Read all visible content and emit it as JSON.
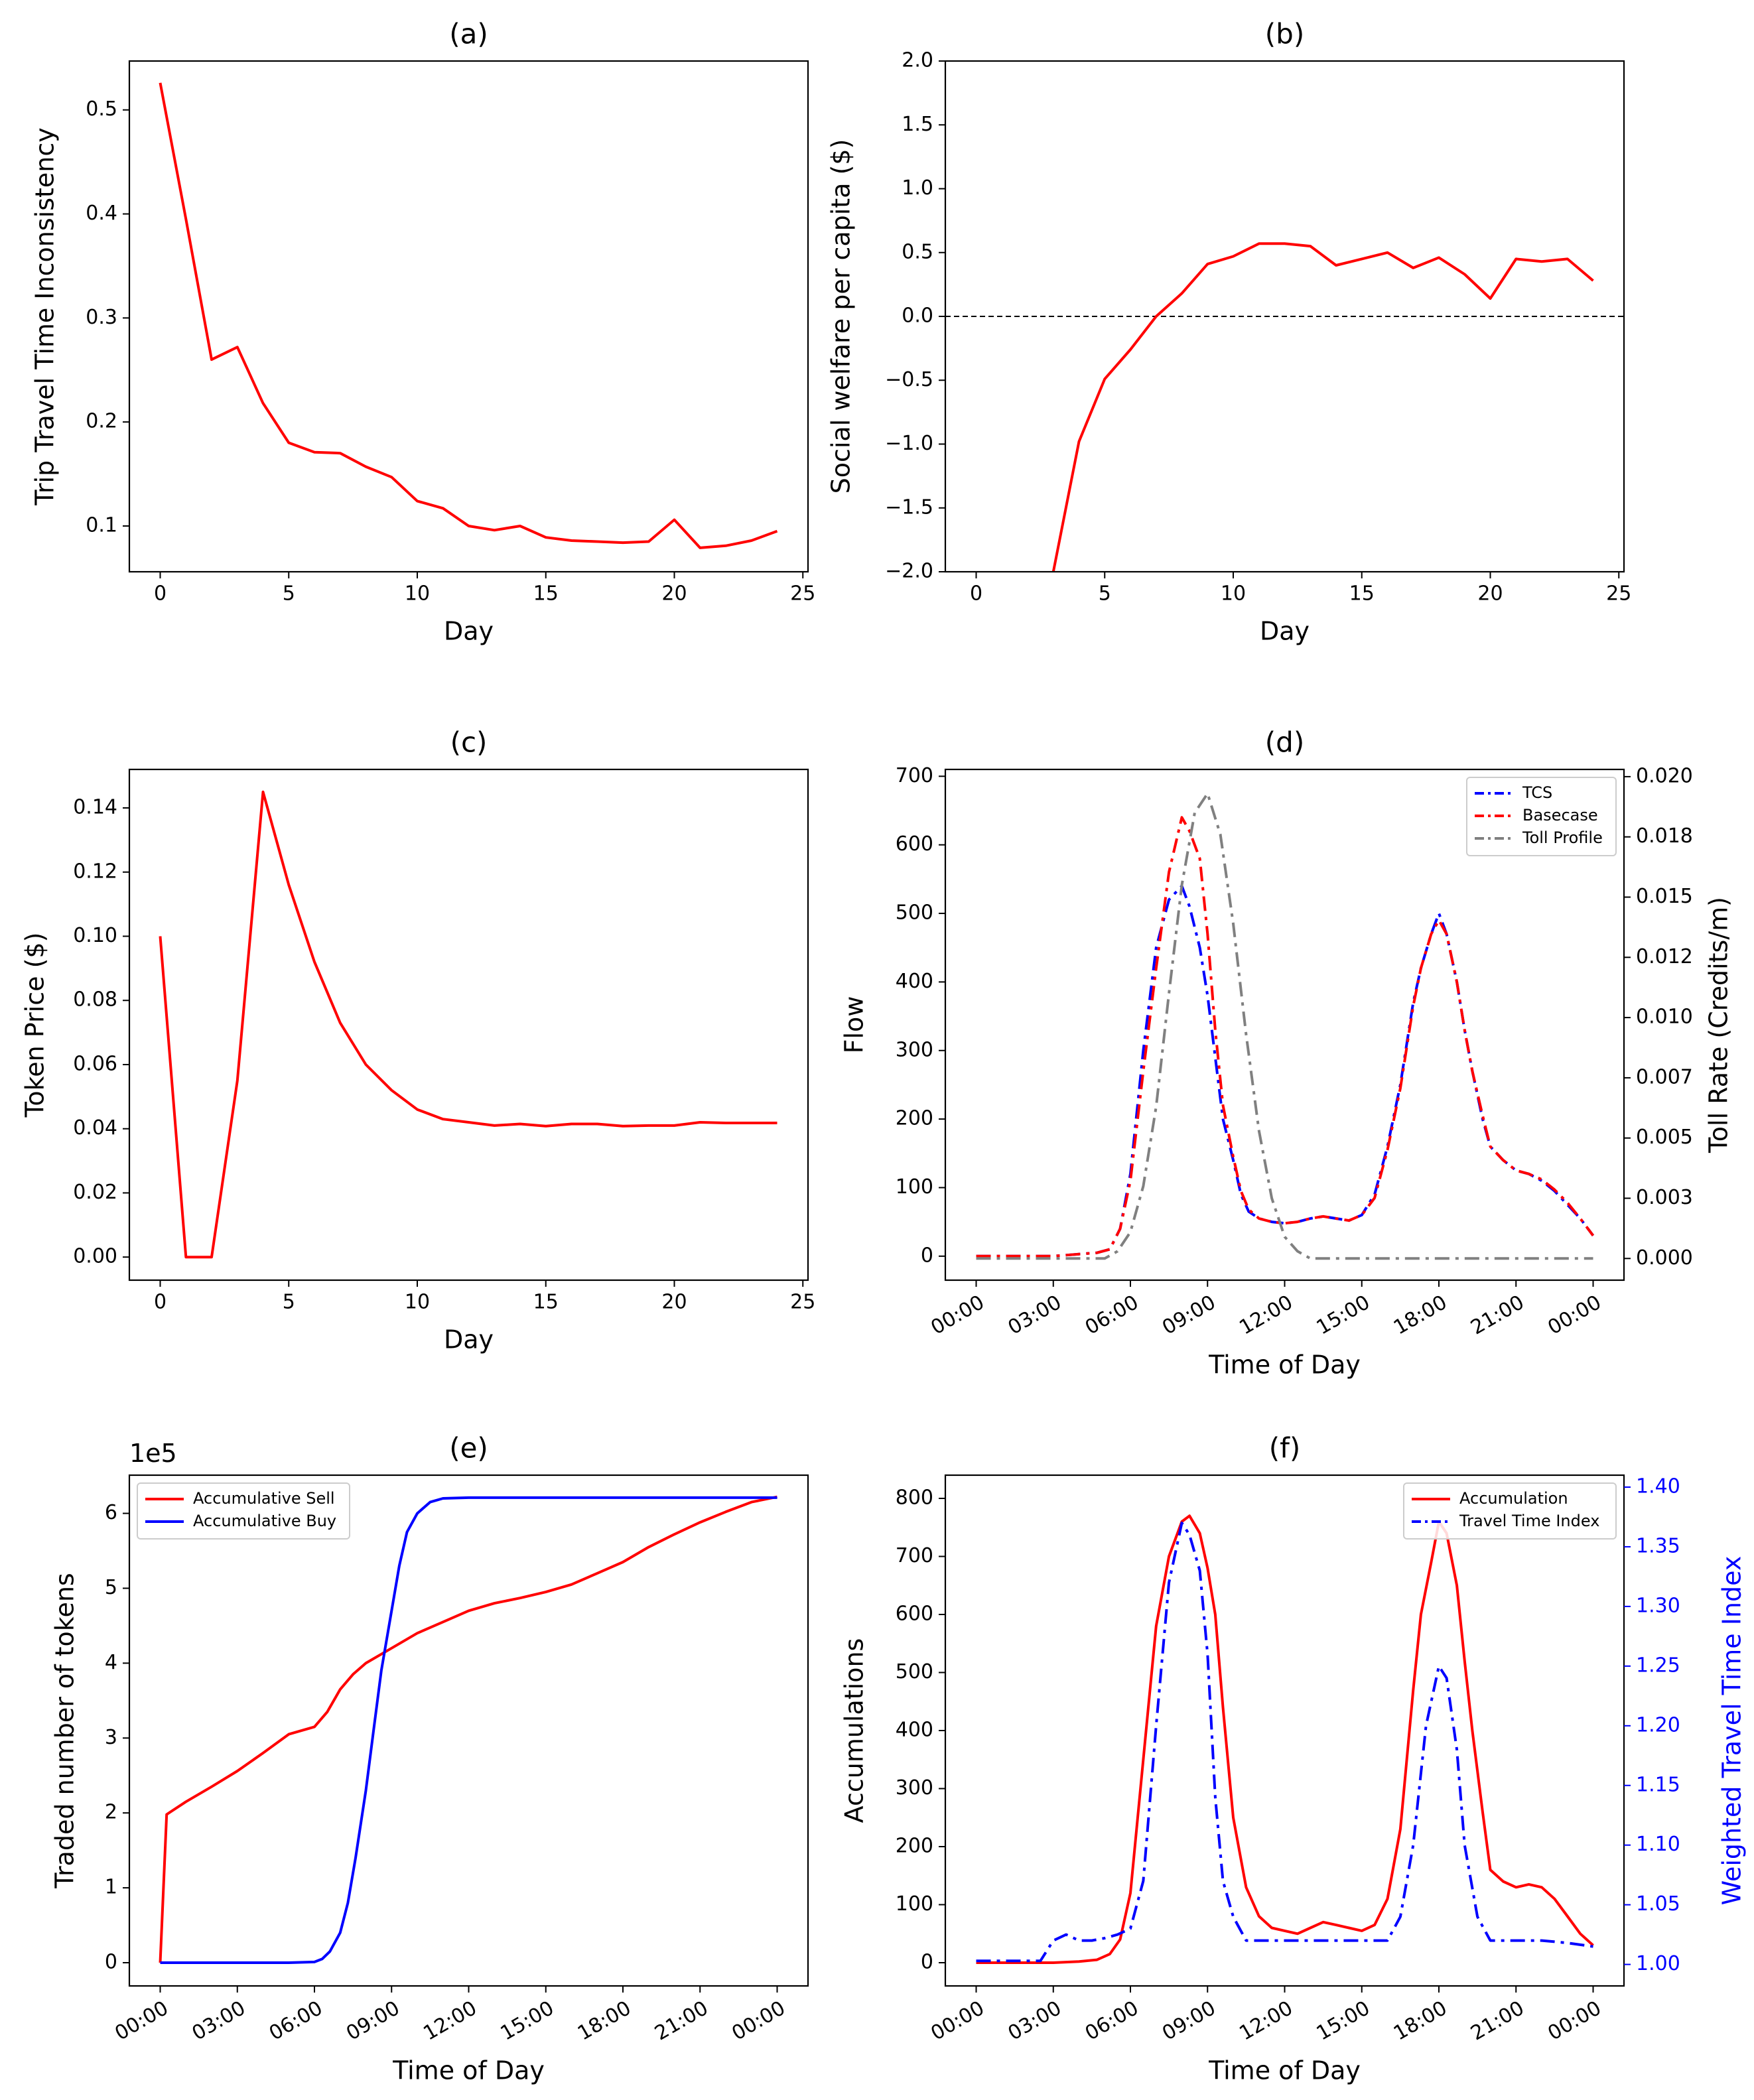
{
  "chart_data": [
    {
      "id": "a",
      "type": "line",
      "title": "(a)",
      "xlabel": "Day",
      "ylabel": "Trip Travel Time Inconsistency",
      "xlim": [
        -1.2,
        25.2
      ],
      "ylim": [
        0.056,
        0.547
      ],
      "xticks": [
        0,
        5,
        10,
        15,
        20,
        25
      ],
      "xtick_labels": [
        "0",
        "5",
        "10",
        "15",
        "20",
        "25"
      ],
      "yticks": [
        0.1,
        0.2,
        0.3,
        0.4,
        0.5
      ],
      "ytick_labels": [
        "0.1",
        "0.2",
        "0.3",
        "0.4",
        "0.5"
      ],
      "series": [
        {
          "name": "Trip Travel Time Inconsistency",
          "color": "#ff0000",
          "x": [
            0,
            1,
            2,
            3,
            4,
            5,
            6,
            7,
            8,
            9,
            10,
            11,
            12,
            13,
            14,
            15,
            16,
            17,
            18,
            19,
            20,
            21,
            22,
            23,
            24
          ],
          "y": [
            0.526,
            0.395,
            0.26,
            0.272,
            0.218,
            0.18,
            0.171,
            0.17,
            0.157,
            0.147,
            0.124,
            0.117,
            0.1,
            0.096,
            0.1,
            0.089,
            0.086,
            0.085,
            0.084,
            0.085,
            0.106,
            0.079,
            0.081,
            0.086,
            0.095
          ]
        }
      ]
    },
    {
      "id": "b",
      "type": "line",
      "title": "(b)",
      "xlabel": "Day",
      "ylabel": "Social welfare per capita ($)",
      "xlim": [
        -1.2,
        25.2
      ],
      "ylim": [
        -2.0,
        2.0
      ],
      "xticks": [
        0,
        5,
        10,
        15,
        20,
        25
      ],
      "xtick_labels": [
        "0",
        "5",
        "10",
        "15",
        "20",
        "25"
      ],
      "yticks": [
        -2.0,
        -1.5,
        -1.0,
        -0.5,
        0.0,
        0.5,
        1.0,
        1.5,
        2.0
      ],
      "ytick_labels": [
        "−2.0",
        "−1.5",
        "−1.0",
        "−0.5",
        "0.0",
        "0.5",
        "1.0",
        "1.5",
        "2.0"
      ],
      "reference_line": {
        "y": 0.0,
        "style": "dashed",
        "color": "#000000"
      },
      "series": [
        {
          "name": "Social welfare per capita",
          "color": "#ff0000",
          "x": [
            3,
            4,
            5,
            6,
            7,
            8,
            9,
            10,
            11,
            12,
            13,
            14,
            15,
            16,
            17,
            18,
            19,
            20,
            21,
            22,
            23,
            24
          ],
          "y": [
            -2.0,
            -0.98,
            -0.49,
            -0.26,
            0.0,
            0.18,
            0.41,
            0.47,
            0.57,
            0.57,
            0.55,
            0.4,
            0.45,
            0.5,
            0.38,
            0.46,
            0.33,
            0.14,
            0.45,
            0.43,
            0.45,
            0.28
          ]
        }
      ]
    },
    {
      "id": "c",
      "type": "line",
      "title": "(c)",
      "xlabel": "Day",
      "ylabel": "Token Price ($)",
      "xlim": [
        -1.2,
        25.2
      ],
      "ylim": [
        -0.0072,
        0.152
      ],
      "xticks": [
        0,
        5,
        10,
        15,
        20,
        25
      ],
      "xtick_labels": [
        "0",
        "5",
        "10",
        "15",
        "20",
        "25"
      ],
      "yticks": [
        0.0,
        0.02,
        0.04,
        0.06,
        0.08,
        0.1,
        0.12,
        0.14
      ],
      "ytick_labels": [
        "0.00",
        "0.02",
        "0.04",
        "0.06",
        "0.08",
        "0.10",
        "0.12",
        "0.14"
      ],
      "series": [
        {
          "name": "Token Price",
          "color": "#ff0000",
          "x": [
            0,
            1,
            2,
            3,
            4,
            5,
            6,
            7,
            8,
            9,
            10,
            11,
            12,
            13,
            14,
            15,
            16,
            17,
            18,
            19,
            20,
            21,
            22,
            23,
            24
          ],
          "y": [
            0.1,
            0.0,
            0.0,
            0.055,
            0.145,
            0.116,
            0.092,
            0.073,
            0.06,
            0.052,
            0.046,
            0.043,
            0.042,
            0.041,
            0.0415,
            0.0408,
            0.0415,
            0.0415,
            0.0408,
            0.041,
            0.041,
            0.042,
            0.0418,
            0.0418,
            0.0418
          ]
        }
      ]
    },
    {
      "id": "d",
      "type": "line",
      "title": "(d)",
      "xlabel": "Time of Day",
      "ylabel": "Flow",
      "y2label": "Toll Rate (Credits/m)",
      "xlim": [
        -1.2,
        25.2
      ],
      "ylim": [
        -35,
        710
      ],
      "y2lim": [
        -0.0009,
        0.0203
      ],
      "xticks": [
        0,
        3,
        6,
        9,
        12,
        15,
        18,
        21,
        24
      ],
      "xtick_labels": [
        "00:00",
        "03:00",
        "06:00",
        "09:00",
        "12:00",
        "15:00",
        "18:00",
        "21:00",
        "00:00"
      ],
      "yticks": [
        0,
        100,
        200,
        300,
        400,
        500,
        600,
        700
      ],
      "ytick_labels": [
        "0",
        "100",
        "200",
        "300",
        "400",
        "500",
        "600",
        "700"
      ],
      "y2ticks": [
        0.0,
        0.0025,
        0.005,
        0.0075,
        0.01,
        0.0125,
        0.015,
        0.0175,
        0.02
      ],
      "y2tick_labels": [
        "0.000",
        "0.003",
        "0.005",
        "0.007",
        "0.010",
        "0.012",
        "0.015",
        "0.018",
        "0.020"
      ],
      "legend": [
        "TCS",
        "Basecase",
        "Toll Profile"
      ],
      "series": [
        {
          "name": "TCS",
          "color": "#0000ff",
          "style": "dashdot",
          "axis": "left",
          "x": [
            0,
            3,
            4,
            4.7,
            5.2,
            5.6,
            6,
            6.5,
            7,
            7.5,
            8,
            8.3,
            8.7,
            9,
            9.3,
            9.6,
            10,
            10.3,
            10.6,
            11,
            11.5,
            12,
            12.5,
            13,
            13.5,
            14,
            14.5,
            15,
            15.5,
            16,
            16.5,
            17,
            17.3,
            17.7,
            18,
            18.3,
            18.7,
            19,
            19.3,
            19.7,
            20,
            20.5,
            21,
            21.5,
            22,
            22.5,
            23,
            23.5,
            24
          ],
          "y": [
            0,
            0,
            3,
            5,
            10,
            40,
            120,
            300,
            450,
            520,
            540,
            510,
            450,
            380,
            290,
            200,
            140,
            90,
            65,
            55,
            50,
            48,
            50,
            55,
            58,
            55,
            52,
            60,
            90,
            160,
            250,
            370,
            420,
            470,
            500,
            470,
            400,
            330,
            270,
            200,
            160,
            140,
            125,
            120,
            110,
            95,
            75,
            55,
            30
          ]
        },
        {
          "name": "Basecase",
          "color": "#ff0000",
          "style": "dashdot",
          "axis": "left",
          "x": [
            0,
            3,
            4,
            4.7,
            5.2,
            5.6,
            6,
            6.5,
            7,
            7.5,
            8,
            8.3,
            8.7,
            9,
            9.3,
            9.6,
            10,
            10.3,
            10.6,
            11,
            11.5,
            12,
            12.5,
            13,
            13.5,
            14,
            14.5,
            15,
            15.5,
            16,
            16.5,
            17,
            17.3,
            17.7,
            18,
            18.3,
            18.7,
            19,
            19.3,
            19.7,
            20,
            20.5,
            21,
            21.5,
            22,
            22.5,
            23,
            23.5,
            24
          ],
          "y": [
            0,
            0,
            3,
            5,
            10,
            40,
            110,
            270,
            420,
            560,
            640,
            620,
            580,
            470,
            330,
            220,
            145,
            95,
            68,
            55,
            50,
            48,
            50,
            55,
            58,
            55,
            52,
            60,
            85,
            155,
            245,
            365,
            420,
            470,
            490,
            470,
            400,
            330,
            270,
            205,
            160,
            140,
            125,
            120,
            112,
            97,
            78,
            55,
            30
          ]
        },
        {
          "name": "Toll Profile",
          "color": "#808080",
          "style": "dashdot",
          "axis": "right",
          "x": [
            0,
            5,
            5.5,
            6,
            6.5,
            7,
            7.5,
            8,
            8.5,
            9,
            9.5,
            10,
            10.5,
            11,
            11.5,
            12,
            12.5,
            13,
            24
          ],
          "y": [
            0,
            0,
            0.0003,
            0.0011,
            0.003,
            0.0063,
            0.011,
            0.0155,
            0.0185,
            0.0193,
            0.0176,
            0.0139,
            0.0093,
            0.0053,
            0.0025,
            0.0009,
            0.0003,
            0.0,
            0.0
          ]
        }
      ]
    },
    {
      "id": "e",
      "type": "line",
      "title": "(e)",
      "xlabel": "Time of Day",
      "ylabel": "Traded number of tokens",
      "yscale_label": "1e5",
      "xlim": [
        -1.2,
        25.2
      ],
      "ylim": [
        -0.31,
        6.51
      ],
      "xticks": [
        0,
        3,
        6,
        9,
        12,
        15,
        18,
        21,
        24
      ],
      "xtick_labels": [
        "00:00",
        "03:00",
        "06:00",
        "09:00",
        "12:00",
        "15:00",
        "18:00",
        "21:00",
        "00:00"
      ],
      "yticks": [
        0,
        1,
        2,
        3,
        4,
        5,
        6
      ],
      "ytick_labels": [
        "0",
        "1",
        "2",
        "3",
        "4",
        "5",
        "6"
      ],
      "legend": [
        "Accumulative Sell",
        "Accumulative Buy"
      ],
      "series": [
        {
          "name": "Accumulative Sell",
          "color": "#ff0000",
          "x": [
            0,
            0.25,
            1,
            2,
            3,
            4,
            5,
            6,
            6.5,
            7,
            7.5,
            8,
            9,
            10,
            11,
            12,
            13,
            14,
            15,
            16,
            17,
            18,
            19,
            20,
            21,
            22,
            23,
            24
          ],
          "y": [
            0,
            1.98,
            2.15,
            2.35,
            2.56,
            2.8,
            3.05,
            3.15,
            3.35,
            3.65,
            3.85,
            4.0,
            4.2,
            4.4,
            4.55,
            4.7,
            4.8,
            4.87,
            4.95,
            5.05,
            5.2,
            5.35,
            5.55,
            5.72,
            5.88,
            6.02,
            6.15,
            6.22
          ]
        },
        {
          "name": "Accumulative Buy",
          "color": "#0000ff",
          "x": [
            0,
            5,
            6,
            6.3,
            6.6,
            7,
            7.3,
            7.6,
            8,
            8.3,
            8.6,
            9,
            9.3,
            9.6,
            10,
            10.5,
            11,
            12,
            24
          ],
          "y": [
            0,
            0,
            0.01,
            0.05,
            0.15,
            0.4,
            0.8,
            1.4,
            2.3,
            3.1,
            3.9,
            4.7,
            5.3,
            5.75,
            6.0,
            6.15,
            6.2,
            6.21,
            6.21
          ]
        }
      ]
    },
    {
      "id": "f",
      "type": "line",
      "title": "(f)",
      "xlabel": "Time of Day",
      "ylabel": "Accumulations",
      "y2label": "Weighted Travel Time Index",
      "xlim": [
        -1.2,
        25.2
      ],
      "ylim": [
        -40,
        840
      ],
      "y2lim": [
        0.982,
        1.41
      ],
      "xticks": [
        0,
        3,
        6,
        9,
        12,
        15,
        18,
        21,
        24
      ],
      "xtick_labels": [
        "00:00",
        "03:00",
        "06:00",
        "09:00",
        "12:00",
        "15:00",
        "18:00",
        "21:00",
        "00:00"
      ],
      "yticks": [
        0,
        100,
        200,
        300,
        400,
        500,
        600,
        700,
        800
      ],
      "ytick_labels": [
        "0",
        "100",
        "200",
        "300",
        "400",
        "500",
        "600",
        "700",
        "800"
      ],
      "y2ticks": [
        1.0,
        1.05,
        1.1,
        1.15,
        1.2,
        1.25,
        1.3,
        1.35,
        1.4
      ],
      "y2tick_labels": [
        "1.00",
        "1.05",
        "1.10",
        "1.15",
        "1.20",
        "1.25",
        "1.30",
        "1.35",
        "1.40"
      ],
      "y2_color": "#0000ff",
      "legend": [
        "Accumulation",
        "Travel Time Index"
      ],
      "series": [
        {
          "name": "Accumulation",
          "color": "#ff0000",
          "style": "solid",
          "axis": "left",
          "x": [
            0,
            3,
            4,
            4.7,
            5.2,
            5.6,
            6,
            6.5,
            7,
            7.5,
            8,
            8.3,
            8.7,
            9,
            9.3,
            9.6,
            10,
            10.5,
            11,
            11.5,
            12,
            12.5,
            13,
            13.5,
            14,
            14.5,
            15,
            15.5,
            16,
            16.5,
            17,
            17.3,
            17.7,
            18,
            18.3,
            18.7,
            19,
            19.3,
            19.7,
            20,
            20.5,
            21,
            21.5,
            22,
            22.5,
            23,
            23.5,
            24
          ],
          "y": [
            0,
            0,
            2,
            5,
            15,
            40,
            120,
            350,
            580,
            700,
            760,
            770,
            740,
            680,
            600,
            440,
            250,
            130,
            80,
            60,
            55,
            50,
            60,
            70,
            65,
            60,
            55,
            65,
            110,
            230,
            470,
            600,
            690,
            760,
            740,
            650,
            520,
            400,
            260,
            160,
            140,
            130,
            135,
            130,
            110,
            80,
            50,
            30
          ]
        },
        {
          "name": "Travel Time Index",
          "color": "#0000ff",
          "style": "dashdot",
          "axis": "right",
          "x": [
            0,
            2.5,
            3,
            3.5,
            4,
            4.5,
            5,
            5.5,
            6,
            6.5,
            7,
            7.5,
            8,
            8.3,
            8.7,
            9,
            9.3,
            9.6,
            10,
            10.5,
            11,
            12,
            13,
            14,
            15,
            16,
            16.5,
            17,
            17.5,
            18,
            18.3,
            18.7,
            19,
            19.5,
            20,
            21,
            22,
            23,
            24
          ],
          "y": [
            1.003,
            1.003,
            1.02,
            1.025,
            1.02,
            1.02,
            1.022,
            1.025,
            1.03,
            1.07,
            1.2,
            1.32,
            1.37,
            1.36,
            1.33,
            1.26,
            1.14,
            1.07,
            1.04,
            1.02,
            1.02,
            1.02,
            1.02,
            1.02,
            1.02,
            1.02,
            1.04,
            1.1,
            1.2,
            1.25,
            1.24,
            1.18,
            1.1,
            1.04,
            1.02,
            1.02,
            1.02,
            1.018,
            1.015
          ]
        }
      ]
    }
  ]
}
